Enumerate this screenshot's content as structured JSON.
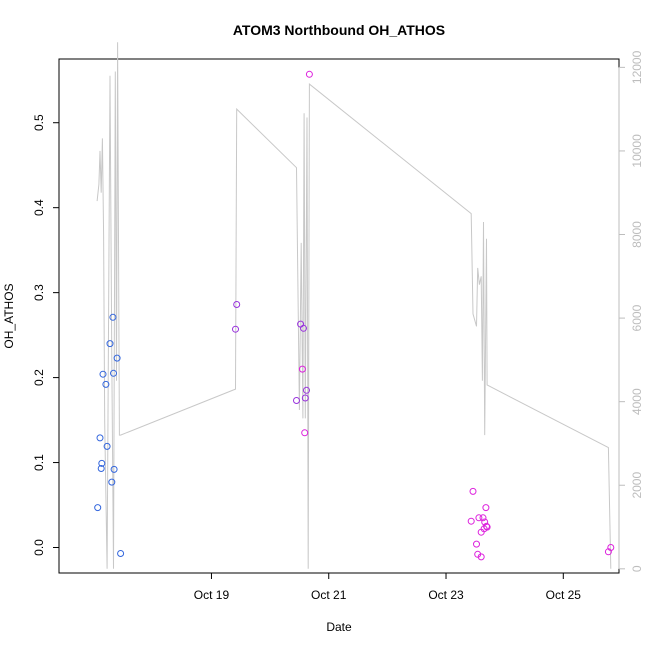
{
  "chart_data": {
    "type": "scatter",
    "title": "ATOM3 Northbound OH_ATHOS",
    "xlabel": "Date",
    "ylabel": "OH_ATHOS",
    "y2label": "",
    "grid": false,
    "xlim": [
      16.4,
      25.95
    ],
    "ylim": [
      -0.03,
      0.575
    ],
    "y2lim": [
      -100,
      12200
    ],
    "x_ticks": [
      {
        "value": 19,
        "label": "Oct 19"
      },
      {
        "value": 21,
        "label": "Oct 21"
      },
      {
        "value": 23,
        "label": "Oct 23"
      },
      {
        "value": 25,
        "label": "Oct 25"
      }
    ],
    "y_ticks": [
      {
        "value": 0.0,
        "label": "0.0"
      },
      {
        "value": 0.1,
        "label": "0.1"
      },
      {
        "value": 0.2,
        "label": "0.2"
      },
      {
        "value": 0.3,
        "label": "0.3"
      },
      {
        "value": 0.4,
        "label": "0.4"
      },
      {
        "value": 0.5,
        "label": "0.5"
      }
    ],
    "y2_ticks": [
      {
        "value": 0,
        "label": "0"
      },
      {
        "value": 2000,
        "label": "2000"
      },
      {
        "value": 4000,
        "label": "4000"
      },
      {
        "value": 6000,
        "label": "6000"
      },
      {
        "value": 8000,
        "label": "8000"
      },
      {
        "value": 10000,
        "label": "10000"
      },
      {
        "value": 12000,
        "label": "12000"
      }
    ],
    "colors": {
      "blue": "#3366dd",
      "purple": "#9933dd",
      "magenta": "#dd22dd",
      "altitude_line": "#c8c8c8",
      "axis": "#000000",
      "right_axis": "#bdbdbd"
    },
    "series": [
      {
        "color_key": "blue",
        "marker": "open-circle",
        "points": [
          {
            "x": 17.06,
            "y": 0.047
          },
          {
            "x": 17.1,
            "y": 0.129
          },
          {
            "x": 17.12,
            "y": 0.093
          },
          {
            "x": 17.13,
            "y": 0.099
          },
          {
            "x": 17.15,
            "y": 0.204
          },
          {
            "x": 17.2,
            "y": 0.192
          },
          {
            "x": 17.22,
            "y": 0.119
          },
          {
            "x": 17.27,
            "y": 0.24
          },
          {
            "x": 17.3,
            "y": 0.077
          },
          {
            "x": 17.32,
            "y": 0.271
          },
          {
            "x": 17.33,
            "y": 0.205
          },
          {
            "x": 17.34,
            "y": 0.092
          },
          {
            "x": 17.39,
            "y": 0.223
          },
          {
            "x": 17.45,
            "y": -0.007
          }
        ]
      },
      {
        "color_key": "purple",
        "marker": "open-circle",
        "points": [
          {
            "x": 19.41,
            "y": 0.257
          },
          {
            "x": 19.43,
            "y": 0.286
          },
          {
            "x": 20.45,
            "y": 0.173
          },
          {
            "x": 20.52,
            "y": 0.263
          },
          {
            "x": 20.57,
            "y": 0.258
          },
          {
            "x": 20.6,
            "y": 0.176
          },
          {
            "x": 20.62,
            "y": 0.185
          }
        ]
      },
      {
        "color_key": "magenta",
        "marker": "open-circle",
        "points": [
          {
            "x": 20.55,
            "y": 0.21
          },
          {
            "x": 20.59,
            "y": 0.135
          },
          {
            "x": 20.67,
            "y": 0.557
          },
          {
            "x": 23.43,
            "y": 0.031
          },
          {
            "x": 23.46,
            "y": 0.066
          },
          {
            "x": 23.52,
            "y": 0.004
          },
          {
            "x": 23.54,
            "y": -0.008
          },
          {
            "x": 23.56,
            "y": 0.035
          },
          {
            "x": 23.6,
            "y": -0.011
          },
          {
            "x": 23.6,
            "y": 0.018
          },
          {
            "x": 23.63,
            "y": 0.035
          },
          {
            "x": 23.65,
            "y": 0.022
          },
          {
            "x": 23.66,
            "y": 0.03
          },
          {
            "x": 23.68,
            "y": 0.047
          },
          {
            "x": 23.69,
            "y": 0.025
          },
          {
            "x": 23.7,
            "y": 0.024
          },
          {
            "x": 25.77,
            "y": -0.005
          },
          {
            "x": 25.81,
            "y": 0.0
          }
        ]
      }
    ],
    "altitude_line": {
      "axis": "right",
      "points": [
        {
          "x": 17.05,
          "y": 8800
        },
        {
          "x": 17.08,
          "y": 9200
        },
        {
          "x": 17.1,
          "y": 10000
        },
        {
          "x": 17.12,
          "y": 9000
        },
        {
          "x": 17.14,
          "y": 10300
        },
        {
          "x": 17.16,
          "y": 8000
        },
        {
          "x": 17.18,
          "y": 3500
        },
        {
          "x": 17.22,
          "y": 0
        },
        {
          "x": 17.27,
          "y": 11800
        },
        {
          "x": 17.3,
          "y": 5000
        },
        {
          "x": 17.33,
          "y": 0
        },
        {
          "x": 17.36,
          "y": 11900
        },
        {
          "x": 17.38,
          "y": 4500
        },
        {
          "x": 17.4,
          "y": 12600
        },
        {
          "x": 17.43,
          "y": 3200
        },
        {
          "x": 17.45,
          "y": 3200
        },
        {
          "x": 19.41,
          "y": 4300
        },
        {
          "x": 19.43,
          "y": 11000
        },
        {
          "x": 20.45,
          "y": 9600
        },
        {
          "x": 20.5,
          "y": 3800
        },
        {
          "x": 20.53,
          "y": 7800
        },
        {
          "x": 20.56,
          "y": 3600
        },
        {
          "x": 20.58,
          "y": 10900
        },
        {
          "x": 20.6,
          "y": 3600
        },
        {
          "x": 20.63,
          "y": 10800
        },
        {
          "x": 20.65,
          "y": 0
        },
        {
          "x": 20.67,
          "y": 11600
        },
        {
          "x": 23.43,
          "y": 8500
        },
        {
          "x": 23.46,
          "y": 6100
        },
        {
          "x": 23.52,
          "y": 5800
        },
        {
          "x": 23.54,
          "y": 7200
        },
        {
          "x": 23.57,
          "y": 6800
        },
        {
          "x": 23.6,
          "y": 7000
        },
        {
          "x": 23.62,
          "y": 4500
        },
        {
          "x": 23.64,
          "y": 8300
        },
        {
          "x": 23.66,
          "y": 3200
        },
        {
          "x": 23.69,
          "y": 7900
        },
        {
          "x": 23.7,
          "y": 4400
        },
        {
          "x": 25.77,
          "y": 2900
        },
        {
          "x": 25.81,
          "y": 0
        }
      ]
    }
  }
}
